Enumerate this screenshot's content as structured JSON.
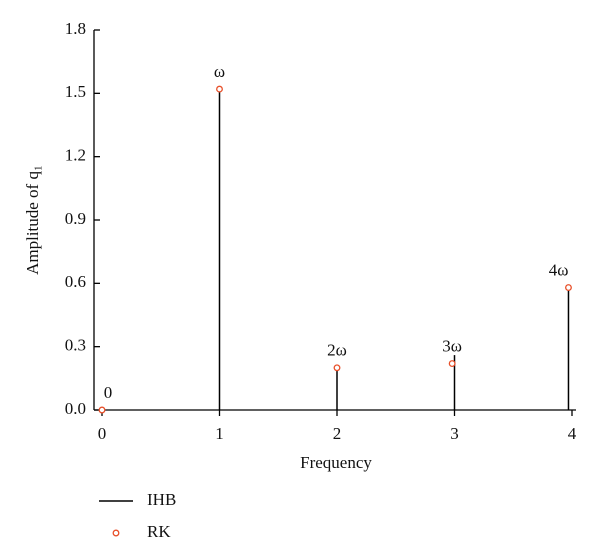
{
  "chart_data": {
    "type": "stem",
    "xlabel": "Frequency",
    "ylabel": "Amplitude of q₁",
    "xlim": [
      0,
      4
    ],
    "xticks": [
      0,
      1,
      2,
      3,
      4
    ],
    "ylim": [
      0,
      1.8
    ],
    "yticks": [
      {
        "value": 0,
        "label": "0.0"
      },
      {
        "value": 0.3,
        "label": "0.3"
      },
      {
        "value": 0.6,
        "label": "0.6"
      },
      {
        "value": 0.9,
        "label": "0.9"
      },
      {
        "value": 1.2,
        "label": "1.2"
      },
      {
        "value": 1.5,
        "label": "1.5"
      },
      {
        "value": 1.8,
        "label": "1.8"
      }
    ],
    "series": [
      {
        "name": "IHB",
        "color": "#000000",
        "marker": "stem",
        "x": [
          0,
          1,
          2,
          3,
          3.97
        ],
        "values": [
          0,
          1.53,
          0.21,
          0.26,
          0.59
        ]
      },
      {
        "name": "RK",
        "color": "#e8502a",
        "marker": "circle",
        "x": [
          0,
          1,
          2,
          2.98,
          3.97
        ],
        "values": [
          0,
          1.52,
          0.2,
          0.22,
          0.58
        ]
      }
    ],
    "annotations": [
      "0",
      "ω",
      "2ω",
      "3ω",
      "4ω"
    ]
  }
}
